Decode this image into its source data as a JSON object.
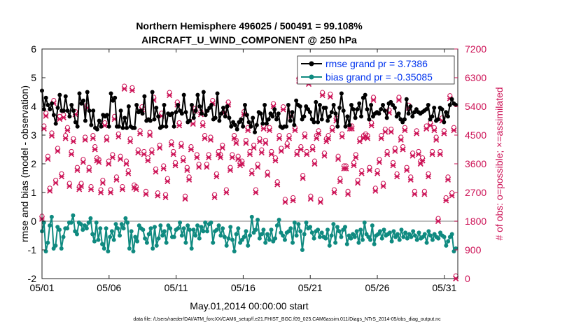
{
  "chart_data": {
    "type": "line",
    "title_line1": "Northern Hemisphere 496025 / 500491 = 99.108%",
    "title_line2": "AIRCRAFT_U_WIND_COMPONENT @ 250 hPa",
    "xlabel": "May.01,2014 00:00:00 start",
    "ylabel_left": "rmse and bias (model - observation)",
    "ylabel_right": "# of obs: o=possible; ×=assimilated",
    "footnote": "data file: /Users/raeder/DAI/ATM_forcXX/CAM6_setup/f.e21.FHIST_BGC.f09_025.CAM6assim.011/Diags_NTrS_2014-05/obs_diag_output.nc",
    "x_tick_labels": [
      "05/01",
      "05/06",
      "05/11",
      "05/16",
      "05/21",
      "05/26",
      "05/31"
    ],
    "x_tick_days": [
      1,
      6,
      11,
      16,
      21,
      26,
      31
    ],
    "xlim": [
      1,
      32
    ],
    "ylim_left": [
      -2,
      6
    ],
    "y_ticks_left": [
      "-2",
      "-1",
      "0",
      "1",
      "2",
      "3",
      "4",
      "5",
      "6"
    ],
    "ylim_right": [
      0,
      7200
    ],
    "y_ticks_right": [
      "0",
      "900",
      "1800",
      "2700",
      "3600",
      "4500",
      "5400",
      "6300",
      "7200"
    ],
    "grid": false,
    "legend_position": "top-right",
    "colors": {
      "rmse": "#000000",
      "bias": "#0f8a80",
      "obs": "#cc1155",
      "legend_text": "#0033ee",
      "zero_line": "#aaaaaa"
    },
    "series": [
      {
        "name": "rmse grand pr = 3.7386",
        "color": "#000000",
        "axis": "left",
        "values": [
          4.55,
          3.9,
          4.3,
          4.05,
          3.9,
          4.1,
          3.7,
          3.4,
          3.95,
          4.4,
          3.85,
          3.85,
          4.35,
          3.85,
          3.65,
          4.05,
          3.85,
          3.45,
          3.3,
          4.45,
          4.1,
          4.2,
          3.5,
          4.5,
          3.85,
          3.35,
          3.85,
          3.25,
          3.2,
          3.5,
          3.3,
          3.7,
          3.65,
          3.7,
          3.3,
          4.45,
          4.2,
          4.3,
          3.3,
          3.3,
          3.85,
          3.25,
          3.6,
          3.25,
          4.0,
          3.3,
          3.25,
          3.25,
          4.05,
          3.8,
          3.85,
          3.75,
          4.35,
          3.5,
          3.55,
          3.5,
          4.5,
          3.55,
          3.95,
          3.65,
          3.25,
          3.3,
          4.05,
          3.3,
          3.75,
          3.7,
          3.75,
          3.3,
          3.8,
          4.05,
          3.85,
          3.75,
          4.4,
          3.8,
          3.45,
          3.5,
          4.05,
          3.6,
          3.85,
          4.4,
          4.0,
          3.75,
          4.5,
          3.7,
          3.85,
          3.95,
          4.05,
          3.55,
          3.6,
          4.45,
          3.5,
          3.75,
          3.95,
          3.65,
          4.0,
          3.6,
          3.3,
          3.45,
          3.35,
          3.2,
          3.45,
          3.55,
          3.3,
          4.05,
          3.7,
          3.45,
          3.3,
          3.6,
          3.1,
          3.35,
          3.8,
          3.75,
          3.4,
          4.05,
          3.4,
          3.55,
          3.75,
          3.65,
          3.9,
          3.55,
          3.75,
          3.3,
          3.25,
          3.3,
          3.3,
          4.05,
          3.5,
          3.8,
          3.35,
          4.2,
          4.05,
          4.0,
          3.55,
          3.65,
          4.0,
          3.9,
          3.8,
          3.55,
          3.45,
          4.15,
          3.45,
          4.05,
          3.55,
          3.95,
          3.95,
          3.5,
          3.65,
          3.8,
          4.05,
          3.75,
          3.3,
          3.95,
          4.45,
          3.85,
          3.3,
          3.65,
          3.35,
          4.05,
          3.9,
          3.6,
          3.9,
          4.1,
          3.65,
          4.3,
          4.4,
          3.9,
          3.55,
          4.05,
          3.65,
          3.75,
          3.8,
          3.75,
          3.9,
          4.05,
          3.85,
          3.6,
          4.1,
          4.15,
          4.05,
          3.95,
          3.65,
          3.75,
          3.55,
          3.45,
          3.55,
          4.25,
          3.75,
          4.0,
          3.65,
          3.8,
          3.9,
          3.8,
          3.75,
          3.8,
          3.85,
          3.9,
          4.05,
          3.55,
          3.65,
          3.95,
          3.5,
          3.55,
          3.95,
          3.9,
          3.45,
          3.8,
          3.65,
          4.05,
          4.25,
          4.1,
          4.05
        ]
      },
      {
        "name": "bias grand pr = -0.35085",
        "color": "#0f8a80",
        "axis": "left",
        "values": [
          -0.35,
          -0.05,
          -1.05,
          -0.75,
          -0.15,
          0.15,
          -0.95,
          -0.85,
          -0.2,
          -0.3,
          -0.95,
          -0.55,
          -0.25,
          -0.25,
          -0.05,
          -0.05,
          0.2,
          -0.35,
          -0.45,
          -0.05,
          -0.1,
          -0.3,
          -0.15,
          -0.25,
          -0.05,
          0.1,
          -0.45,
          -0.7,
          -0.05,
          -0.65,
          -0.25,
          -0.8,
          -0.95,
          -0.25,
          -1.05,
          -0.55,
          -0.35,
          -0.65,
          -0.1,
          -0.25,
          -0.5,
          -0.1,
          -0.25,
          0.1,
          -0.05,
          -0.95,
          -0.35,
          -1.05,
          -0.55,
          -0.7,
          -0.15,
          -0.25,
          -0.3,
          -0.6,
          -0.75,
          -0.45,
          -0.25,
          -0.95,
          -0.2,
          -0.85,
          -0.6,
          -0.15,
          -0.5,
          -0.35,
          -0.75,
          -0.15,
          -0.25,
          -0.55,
          -0.55,
          -0.3,
          -0.25,
          -0.05,
          -0.5,
          -0.25,
          -0.75,
          -0.15,
          -0.3,
          -0.95,
          -0.3,
          -0.5,
          -0.15,
          -0.6,
          -0.2,
          -0.35,
          -0.05,
          -0.35,
          -0.1,
          -0.05,
          -0.75,
          -0.35,
          -0.3,
          -0.15,
          -0.5,
          -0.25,
          -0.55,
          -0.85,
          -0.6,
          -0.2,
          -0.65,
          -1.05,
          -0.45,
          -0.25,
          -0.75,
          -0.65,
          -0.55,
          -0.35,
          -0.85,
          -0.5,
          0.15,
          -0.4,
          -0.3,
          0.05,
          -0.6,
          -0.45,
          -0.3,
          -0.75,
          -0.45,
          -0.65,
          -0.3,
          -0.7,
          -0.6,
          -0.15,
          0.05,
          -0.4,
          -0.5,
          -0.65,
          -0.4,
          -0.35,
          -0.25,
          -0.75,
          -0.05,
          -0.5,
          -0.1,
          -0.35,
          -1.0,
          -0.45,
          -0.05,
          -0.25,
          -0.2,
          -0.4,
          -0.6,
          -0.35,
          -0.3,
          -0.55,
          -0.4,
          -0.55,
          -0.6,
          -0.3,
          -0.85,
          -0.5,
          -0.1,
          -0.75,
          -0.2,
          -0.35,
          -0.55,
          -0.3,
          -0.2,
          -0.8,
          -0.5,
          -0.6,
          -0.45,
          -0.55,
          -0.35,
          -0.75,
          -0.3,
          -0.65,
          -0.05,
          -0.45,
          -0.55,
          -0.65,
          -0.15,
          -0.8,
          -0.5,
          -0.45,
          -0.35,
          -0.6,
          -0.3,
          -0.5,
          -0.45,
          -0.4,
          -0.7,
          -0.35,
          -0.55,
          -0.45,
          -0.65,
          -0.3,
          -0.55,
          -0.4,
          -0.6,
          -0.45,
          -0.55,
          -0.35,
          -0.5,
          -0.65,
          -0.4,
          -0.6,
          -0.55,
          -0.45,
          -0.75,
          -0.35,
          -0.5,
          -0.65,
          -0.45,
          -0.55,
          -0.6,
          -0.4,
          -0.5,
          -0.55,
          -0.85,
          -0.7,
          -0.55,
          -0.45,
          -1.05,
          -0.95
        ]
      }
    ],
    "obs_counts": {
      "axis": "right",
      "possible_marker": "o",
      "assimilated_marker": "×",
      "values": [
        1870,
        4700,
        5100,
        3750,
        2750,
        4480,
        5500,
        3000,
        4000,
        5000,
        3200,
        5050,
        4400,
        4650,
        2900,
        3900,
        4300,
        5150,
        3400,
        2800,
        2900,
        3650,
        4350,
        5350,
        3400,
        2800,
        4400,
        4050,
        3700,
        3650,
        2700,
        3000,
        4800,
        4350,
        3600,
        2700,
        3800,
        5000,
        3100,
        4450,
        3750,
        2800,
        5950,
        3600,
        3300,
        4300,
        5900,
        2850,
        2800,
        3950,
        4550,
        5300,
        3900,
        2650,
        3700,
        4500,
        3950,
        5600,
        3350,
        2600,
        4100,
        5100,
        3450,
        2550,
        3050,
        5750,
        4200,
        3900,
        3550,
        5450,
        4800,
        4150,
        3700,
        2500,
        3400,
        3100,
        4050,
        4850,
        5250,
        3800,
        3500,
        5150,
        4800,
        4400,
        3500,
        3800,
        4350,
        5500,
        2550,
        3200,
        3900,
        3800,
        4100,
        5200,
        2700,
        5450,
        3400,
        3800,
        4400,
        4250,
        3750,
        3550,
        3600,
        5150,
        4250,
        4650,
        3900,
        3300,
        4100,
        2700,
        3500,
        4300,
        3950,
        4700,
        4250,
        3250,
        4650,
        3900,
        5400,
        3700,
        2950,
        4400,
        4000,
        5300,
        2400,
        4150,
        4400,
        5100,
        2450,
        4650,
        3900,
        6200,
        4050,
        3150,
        4450,
        3900,
        6100,
        2500,
        4050,
        3600,
        4400,
        4550,
        2400,
        5750,
        3850,
        4300,
        4400,
        5700,
        4650,
        2700,
        4950,
        3750,
        3050,
        4450,
        3450,
        3450,
        2650,
        4700,
        4700,
        3550,
        3800,
        3000,
        4300,
        3300,
        4400,
        4450,
        4400,
        3400,
        4800,
        5600,
        2750,
        3300,
        3650,
        4400,
        2900,
        4600,
        3900,
        5200,
        4600,
        3550,
        4000,
        3200,
        5600,
        4350,
        4050,
        4650,
        3400,
        5350,
        3100,
        3850,
        2650,
        4550,
        3900,
        3600,
        3700,
        2650,
        4700,
        3200,
        4800,
        3900,
        4650,
        4350,
        1800,
        3900,
        4950,
        4550,
        2450,
        3100,
        5650,
        2600,
        4650,
        0
      ]
    }
  }
}
